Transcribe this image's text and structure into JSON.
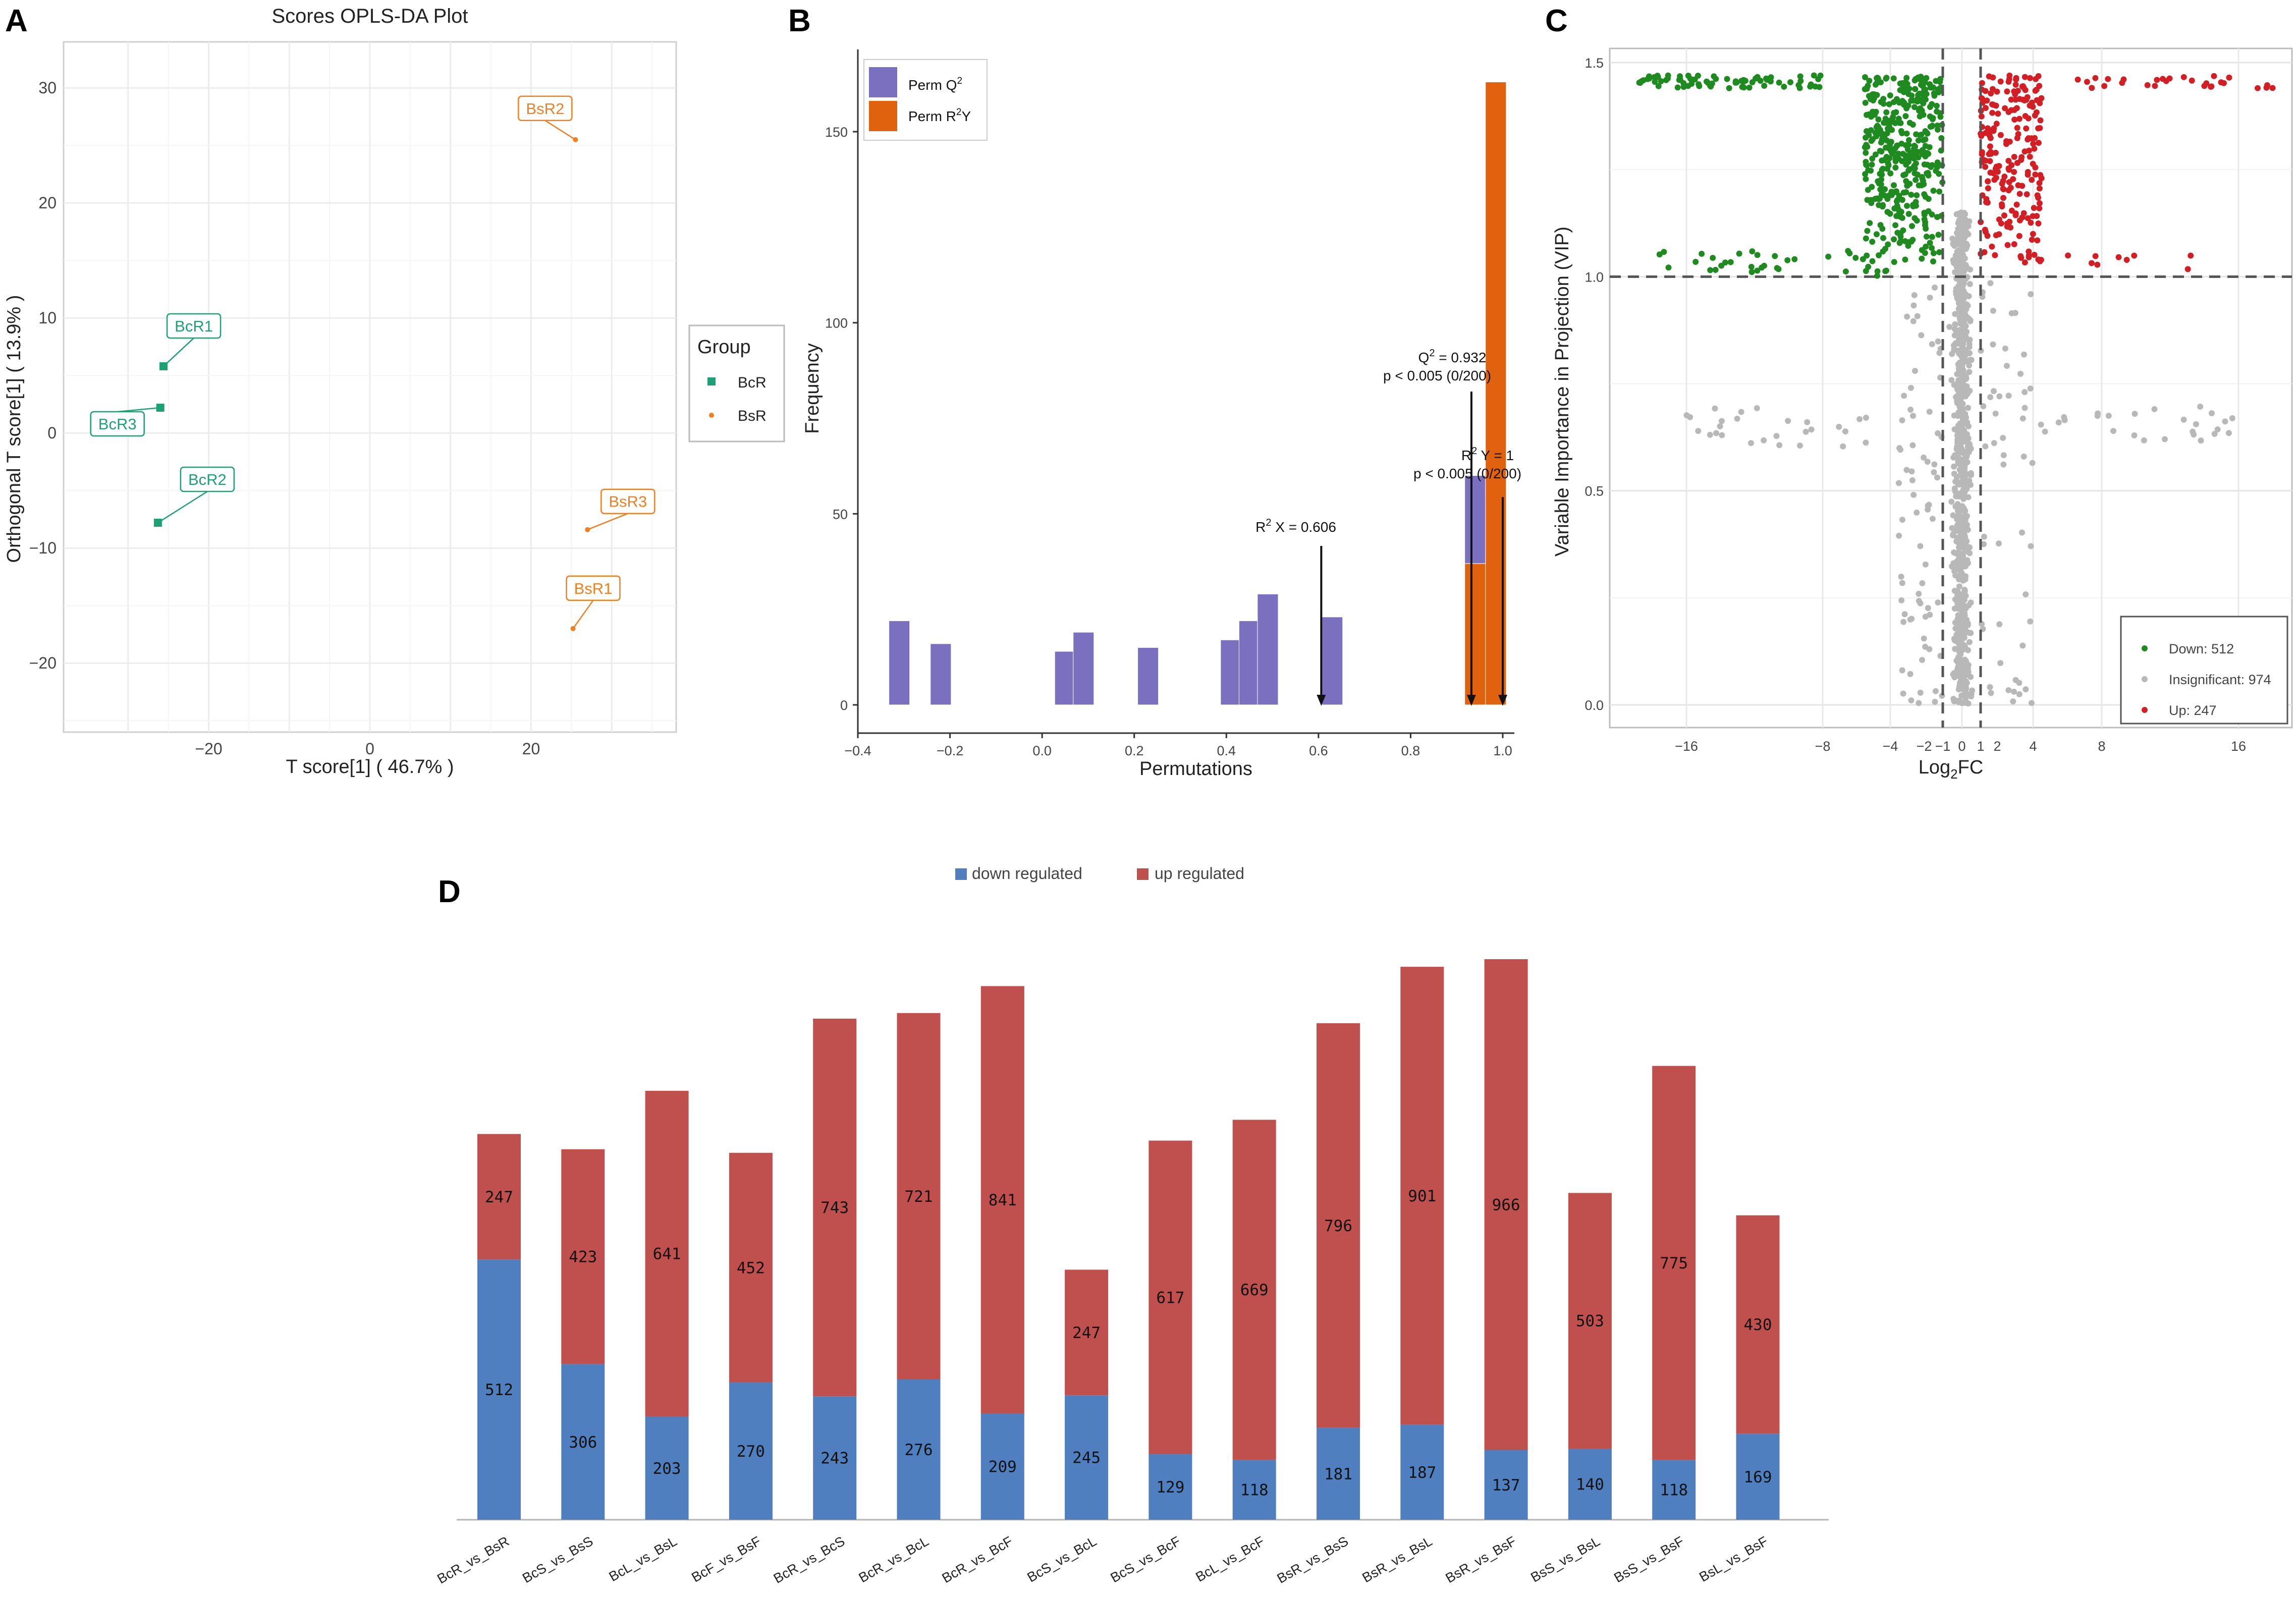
{
  "panels": {
    "A": "A",
    "B": "B",
    "C": "C",
    "D": "D"
  },
  "colors": {
    "bcr": "#1fa074",
    "bsr": "#f07f22",
    "perm_q2": "#7b6fc0",
    "perm_r2y": "#e0620f",
    "down_green": "#1f8a1f",
    "up_red": "#d21f26",
    "insig_grey": "#b8b8b8",
    "bar_down": "#4f7fbf",
    "bar_up": "#c0504d"
  },
  "chart_data": [
    {
      "id": "A",
      "type": "scatter",
      "title": "Scores OPLS-DA Plot",
      "xlabel": "T score[1] ( 46.7% )",
      "ylabel": "Orthogonal T score[1] ( 13.9% )",
      "xlim": [
        -38,
        38
      ],
      "ylim": [
        -26,
        34
      ],
      "xticks": [
        -20,
        0,
        20
      ],
      "yticks": [
        -20,
        -10,
        0,
        10,
        20,
        30
      ],
      "legend": {
        "title": "Group",
        "entries": [
          "BcR",
          "BsR"
        ]
      },
      "points": [
        {
          "label": "BcR1",
          "group": "BcR",
          "x": -25.6,
          "y": 5.8
        },
        {
          "label": "BcR3",
          "group": "BcR",
          "x": -26.0,
          "y": 2.2
        },
        {
          "label": "BcR2",
          "group": "BcR",
          "x": -26.3,
          "y": -7.8
        },
        {
          "label": "BsR2",
          "group": "BsR",
          "x": 25.5,
          "y": 25.5
        },
        {
          "label": "BsR3",
          "group": "BsR",
          "x": 27.0,
          "y": -8.4
        },
        {
          "label": "BsR1",
          "group": "BsR",
          "x": 25.2,
          "y": -17.0
        }
      ]
    },
    {
      "id": "B",
      "type": "bar",
      "title": "",
      "xlabel": "Permutations",
      "ylabel": "Frequency",
      "xlim": [
        -0.4,
        1.05
      ],
      "ylim": [
        0,
        170
      ],
      "xticks": [
        -0.4,
        -0.2,
        0.0,
        0.2,
        0.4,
        0.6,
        0.8,
        1.0
      ],
      "yticks": [
        0,
        50,
        100,
        150
      ],
      "bin_width": 0.045,
      "series": [
        {
          "name": "Perm Q²",
          "bins": [
            {
              "x": -0.31,
              "value": 22
            },
            {
              "x": -0.22,
              "value": 16
            },
            {
              "x": 0.05,
              "value": 14
            },
            {
              "x": 0.09,
              "value": 19
            },
            {
              "x": 0.23,
              "value": 15
            },
            {
              "x": 0.41,
              "value": 17
            },
            {
              "x": 0.45,
              "value": 22
            },
            {
              "x": 0.49,
              "value": 29
            },
            {
              "x": 0.63,
              "value": 23
            },
            {
              "x": 0.94,
              "value": 60
            }
          ]
        },
        {
          "name": "Perm R²Y",
          "bins": [
            {
              "x": 0.94,
              "value": 37
            },
            {
              "x": 0.985,
              "value": 163
            }
          ]
        }
      ],
      "legend": [
        "Perm Q",
        "Perm R",
        "Y"
      ],
      "annotations": [
        {
          "text": "R² X = 0.606",
          "x": 0.606
        },
        {
          "text": "Q² = 0.932",
          "x": 0.932
        },
        {
          "text": "p < 0.005 (0/200)",
          "x": 0.932
        },
        {
          "text": "R² Y = 1",
          "x": 1.0
        },
        {
          "text": "p < 0.005 (0/200)",
          "x": 1.0
        }
      ],
      "annot_text": {
        "r2x_prefix": "R",
        "r2x_suffix": " X = 0.606",
        "q2_prefix": "Q",
        "q2_suffix": " = 0.932",
        "p_q2": "p < 0.005 (0/200)",
        "r2y_prefix": "R",
        "r2y_suffix": " Y = 1",
        "p_r2y": "p < 0.005 (0/200)"
      }
    },
    {
      "id": "C",
      "type": "scatter",
      "title": "",
      "xlabel": "Log2FC",
      "ylabel": "Variable Importance in Projection (VIP)",
      "ylim": [
        -0.03,
        1.52
      ],
      "yticks": [
        0.0,
        0.5,
        1.0,
        1.5
      ],
      "xticks": [
        -16,
        -8,
        -4,
        -2,
        -1,
        0,
        1,
        2,
        4,
        8,
        16
      ],
      "thresholds": {
        "vip": 1.0,
        "log2fc": [
          -1,
          1
        ]
      },
      "legend": [
        {
          "name": "Down: 512",
          "count": 512
        },
        {
          "name": "Insignificant: 974",
          "count": 974
        },
        {
          "name": "Up: 247",
          "count": 247
        }
      ]
    },
    {
      "id": "D",
      "type": "bar",
      "stacked": true,
      "title": "",
      "legend": [
        "down regulated",
        "up regulated"
      ],
      "categories": [
        "BcR_vs_BsR",
        "BcS_vs_BsS",
        "BcL_vs_BsL",
        "BcF_vs_BsF",
        "BcR_vs_BcS",
        "BcR_vs_BcL",
        "BcR_vs_BcF",
        "BcS_vs_BcL",
        "BcS_vs_BcF",
        "BcL_vs_BcF",
        "BsR_vs_BsS",
        "BsR_vs_BsL",
        "BsR_vs_BsF",
        "BsS_vs_BsL",
        "BsS_vs_BsF",
        "BsL_vs_BsF"
      ],
      "series": [
        {
          "name": "down regulated",
          "values": [
            512,
            306,
            203,
            270,
            243,
            276,
            209,
            245,
            129,
            118,
            181,
            187,
            137,
            140,
            118,
            169
          ]
        },
        {
          "name": "up regulated",
          "values": [
            247,
            423,
            641,
            452,
            743,
            721,
            841,
            247,
            617,
            669,
            796,
            901,
            966,
            503,
            775,
            430
          ]
        }
      ]
    }
  ]
}
